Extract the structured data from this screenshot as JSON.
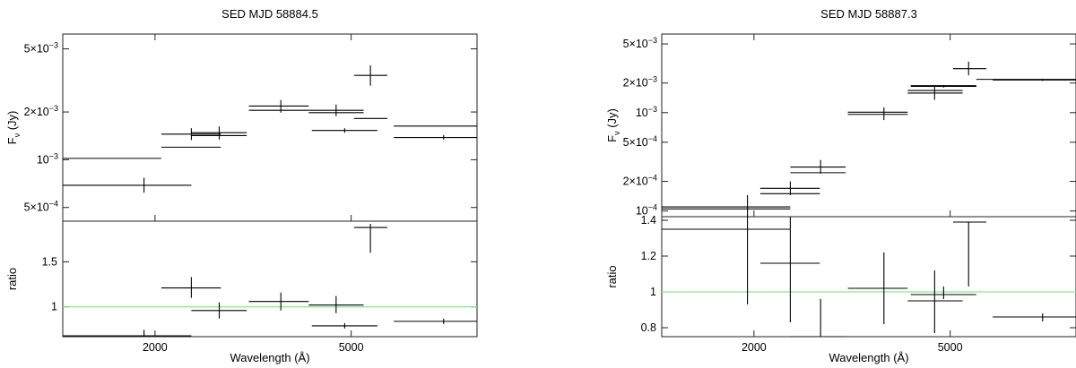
{
  "chart_data": [
    {
      "type": "scatter",
      "title": "SED MJD 58884.5",
      "xlabel": "Wavelength (Å)",
      "xscale": "log",
      "xlim": [
        1300,
        9000
      ],
      "x_ticks": [
        {
          "value": 2000,
          "label": "2000"
        },
        {
          "value": 5000,
          "label": "5000"
        }
      ],
      "top": {
        "ylabel": "F_ν (Jy)",
        "ylabel_main": "F",
        "ylabel_sub": "ν",
        "ylabel_unit": " (Jy)",
        "yscale": "log",
        "ylim": [
          0.00041,
          0.0062
        ],
        "y_ticks": [
          {
            "value": 0.0005,
            "base": "5×10",
            "exp": "−4"
          },
          {
            "value": 0.001,
            "base": "10",
            "exp": "−3"
          },
          {
            "value": 0.002,
            "base": "2×10",
            "exp": "−3"
          },
          {
            "value": 0.005,
            "base": "5×10",
            "exp": "−3"
          }
        ],
        "data": [
          {
            "x": 1900,
            "xlo": 1300,
            "xhi": 2370,
            "y": 0.00069,
            "ylo": 0.00062,
            "yhi": 0.00077
          },
          {
            "x": 2370,
            "xlo": 2060,
            "xhi": 2720,
            "y": 0.00145,
            "ylo": 0.00133,
            "yhi": 0.00158
          },
          {
            "x": 2700,
            "xlo": 2370,
            "xhi": 3070,
            "y": 0.00148,
            "ylo": 0.00134,
            "yhi": 0.00162
          },
          {
            "x": 3600,
            "xlo": 3100,
            "xhi": 4100,
            "y": 0.00218,
            "ylo": 0.00198,
            "yhi": 0.00238
          },
          {
            "x": 4660,
            "xlo": 4100,
            "xhi": 5300,
            "y": 0.00205,
            "ylo": 0.00188,
            "yhi": 0.00223
          },
          {
            "x": 5470,
            "xlo": 5070,
            "xhi": 5920,
            "y": 0.0034,
            "ylo": 0.00293,
            "yhi": 0.00393
          },
          {
            "x": 4850,
            "xlo": 4160,
            "xhi": 5650,
            "y": 0.00153,
            "ylo": 0.00148,
            "yhi": 0.00158
          },
          {
            "x": 7700,
            "xlo": 6100,
            "xhi": 9000,
            "y": 0.00138,
            "ylo": 0.00134,
            "yhi": 0.00143
          }
        ],
        "model": [
          {
            "xlo": 1300,
            "xhi": 2060,
            "y": 0.00102
          },
          {
            "xlo": 2060,
            "xhi": 2720,
            "y": 0.0012
          },
          {
            "xlo": 2370,
            "xhi": 3070,
            "y": 0.00142
          },
          {
            "xlo": 3100,
            "xhi": 4100,
            "y": 0.00205
          },
          {
            "xlo": 4100,
            "xhi": 5300,
            "y": 0.00198
          },
          {
            "xlo": 5070,
            "xhi": 5920,
            "y": 0.00182
          },
          {
            "xlo": 6100,
            "xhi": 9000,
            "y": 0.00163
          }
        ]
      },
      "bottom": {
        "ylabel": "ratio",
        "ylim": [
          0.67,
          1.95
        ],
        "y_ticks": [
          {
            "value": 1,
            "label": "1"
          },
          {
            "value": 1.5,
            "label": "1.5"
          }
        ],
        "reference_line": 1,
        "data": [
          {
            "x": 1900,
            "xlo": 1300,
            "xhi": 2370,
            "y": 0.68,
            "ylo": 0.66,
            "yhi": 0.745
          },
          {
            "x": 2370,
            "xlo": 2060,
            "xhi": 2720,
            "y": 1.21,
            "ylo": 1.1,
            "yhi": 1.33
          },
          {
            "x": 2700,
            "xlo": 2370,
            "xhi": 3070,
            "y": 0.96,
            "ylo": 0.87,
            "yhi": 1.05
          },
          {
            "x": 3600,
            "xlo": 3100,
            "xhi": 4100,
            "y": 1.06,
            "ylo": 0.96,
            "yhi": 1.16
          },
          {
            "x": 4660,
            "xlo": 4100,
            "xhi": 5300,
            "y": 1.02,
            "ylo": 0.93,
            "yhi": 1.12
          },
          {
            "x": 5470,
            "xlo": 5070,
            "xhi": 5920,
            "y": 1.88,
            "ylo": 1.6,
            "yhi": 1.92
          },
          {
            "x": 4850,
            "xlo": 4160,
            "xhi": 5650,
            "y": 0.79,
            "ylo": 0.76,
            "yhi": 0.82
          },
          {
            "x": 7700,
            "xlo": 6100,
            "xhi": 9000,
            "y": 0.84,
            "ylo": 0.81,
            "yhi": 0.87
          }
        ]
      },
      "colors": {
        "data": "#000000",
        "reference": "#8fe68f"
      }
    },
    {
      "type": "scatter",
      "title": "SED MJD 58887.3",
      "xlabel": "Wavelength (Å)",
      "xscale": "log",
      "xlim": [
        1300,
        9000
      ],
      "x_ticks": [
        {
          "value": 2000,
          "label": "2000"
        },
        {
          "value": 5000,
          "label": "5000"
        }
      ],
      "top": {
        "ylabel": "F_ν (Jy)",
        "ylabel_main": "F",
        "ylabel_sub": "ν",
        "ylabel_unit": " (Jy)",
        "yscale": "log",
        "ylim": [
          8.75e-05,
          0.0063
        ],
        "y_ticks": [
          {
            "value": 0.0001,
            "base": "10",
            "exp": "−4"
          },
          {
            "value": 0.0002,
            "base": "2×10",
            "exp": "−4"
          },
          {
            "value": 0.0005,
            "base": "5×10",
            "exp": "−4"
          },
          {
            "value": 0.001,
            "base": "10",
            "exp": "−3"
          },
          {
            "value": 0.002,
            "base": "2×10",
            "exp": "−3"
          },
          {
            "value": 0.005,
            "base": "5×10",
            "exp": "−3"
          }
        ],
        "data": [
          {
            "x": 1940,
            "xlo": 1300,
            "xhi": 2370,
            "y": 0.00011,
            "ylo": 8.75e-05,
            "yhi": 0.000145
          },
          {
            "x": 2370,
            "xlo": 2060,
            "xhi": 2720,
            "y": 0.00017,
            "ylo": 0.000145,
            "yhi": 0.0002
          },
          {
            "x": 2730,
            "xlo": 2370,
            "xhi": 3070,
            "y": 0.00028,
            "ylo": 0.00024,
            "yhi": 0.00033
          },
          {
            "x": 3670,
            "xlo": 3100,
            "xhi": 4100,
            "y": 0.00096,
            "ylo": 0.00084,
            "yhi": 0.00113
          },
          {
            "x": 4650,
            "xlo": 4100,
            "xhi": 5300,
            "y": 0.00158,
            "ylo": 0.00135,
            "yhi": 0.00183
          },
          {
            "x": 5450,
            "xlo": 5070,
            "xhi": 5920,
            "y": 0.0028,
            "ylo": 0.0024,
            "yhi": 0.0033
          },
          {
            "x": 4850,
            "xlo": 4160,
            "xhi": 5650,
            "y": 0.00185,
            "ylo": 0.0018,
            "yhi": 0.0019
          },
          {
            "x": 7700,
            "xlo": 6100,
            "xhi": 9000,
            "y": 0.00215,
            "ylo": 0.0021,
            "yhi": 0.0022
          }
        ],
        "model": [
          {
            "xlo": 1300,
            "xhi": 2370,
            "y": 0.000105
          },
          {
            "xlo": 2060,
            "xhi": 2720,
            "y": 0.00015
          },
          {
            "xlo": 2370,
            "xhi": 3070,
            "y": 0.000245
          },
          {
            "xlo": 3100,
            "xhi": 4100,
            "y": 0.00101
          },
          {
            "xlo": 4100,
            "xhi": 5300,
            "y": 0.00168
          },
          {
            "xlo": 4160,
            "xhi": 5650,
            "y": 0.00188
          },
          {
            "xlo": 5650,
            "xhi": 9000,
            "y": 0.00218
          }
        ]
      },
      "bottom": {
        "ylabel": "ratio",
        "ylim": [
          0.75,
          1.42
        ],
        "y_ticks": [
          {
            "value": 0.8,
            "label": "0.8"
          },
          {
            "value": 1,
            "label": "1"
          },
          {
            "value": 1.2,
            "label": "1.2"
          },
          {
            "value": 1.4,
            "label": "1.4"
          }
        ],
        "reference_line": 1,
        "data": [
          {
            "x": 1940,
            "xlo": 1300,
            "xhi": 2370,
            "y": 1.35,
            "ylo": 0.93,
            "yhi": 1.42
          },
          {
            "x": 2370,
            "xlo": 2060,
            "xhi": 2720,
            "y": 1.16,
            "ylo": 0.83,
            "yhi": 1.42
          },
          {
            "x": 2730,
            "xlo": 2370,
            "xhi": 3070,
            "y": 0.75,
            "ylo": 0.75,
            "yhi": 0.96
          },
          {
            "x": 3670,
            "xlo": 3100,
            "xhi": 4100,
            "y": 1.02,
            "ylo": 0.82,
            "yhi": 1.22
          },
          {
            "x": 4650,
            "xlo": 4100,
            "xhi": 5300,
            "y": 0.95,
            "ylo": 0.77,
            "yhi": 1.12
          },
          {
            "x": 5450,
            "xlo": 5070,
            "xhi": 5920,
            "y": 1.39,
            "ylo": 1.03,
            "yhi": 1.39
          },
          {
            "x": 4850,
            "xlo": 4160,
            "xhi": 5650,
            "y": 0.985,
            "ylo": 0.96,
            "yhi": 1.03
          },
          {
            "x": 7700,
            "xlo": 6100,
            "xhi": 9000,
            "y": 0.86,
            "ylo": 0.835,
            "yhi": 0.88
          }
        ]
      },
      "colors": {
        "data": "#000000",
        "reference": "#8fe68f"
      }
    }
  ]
}
